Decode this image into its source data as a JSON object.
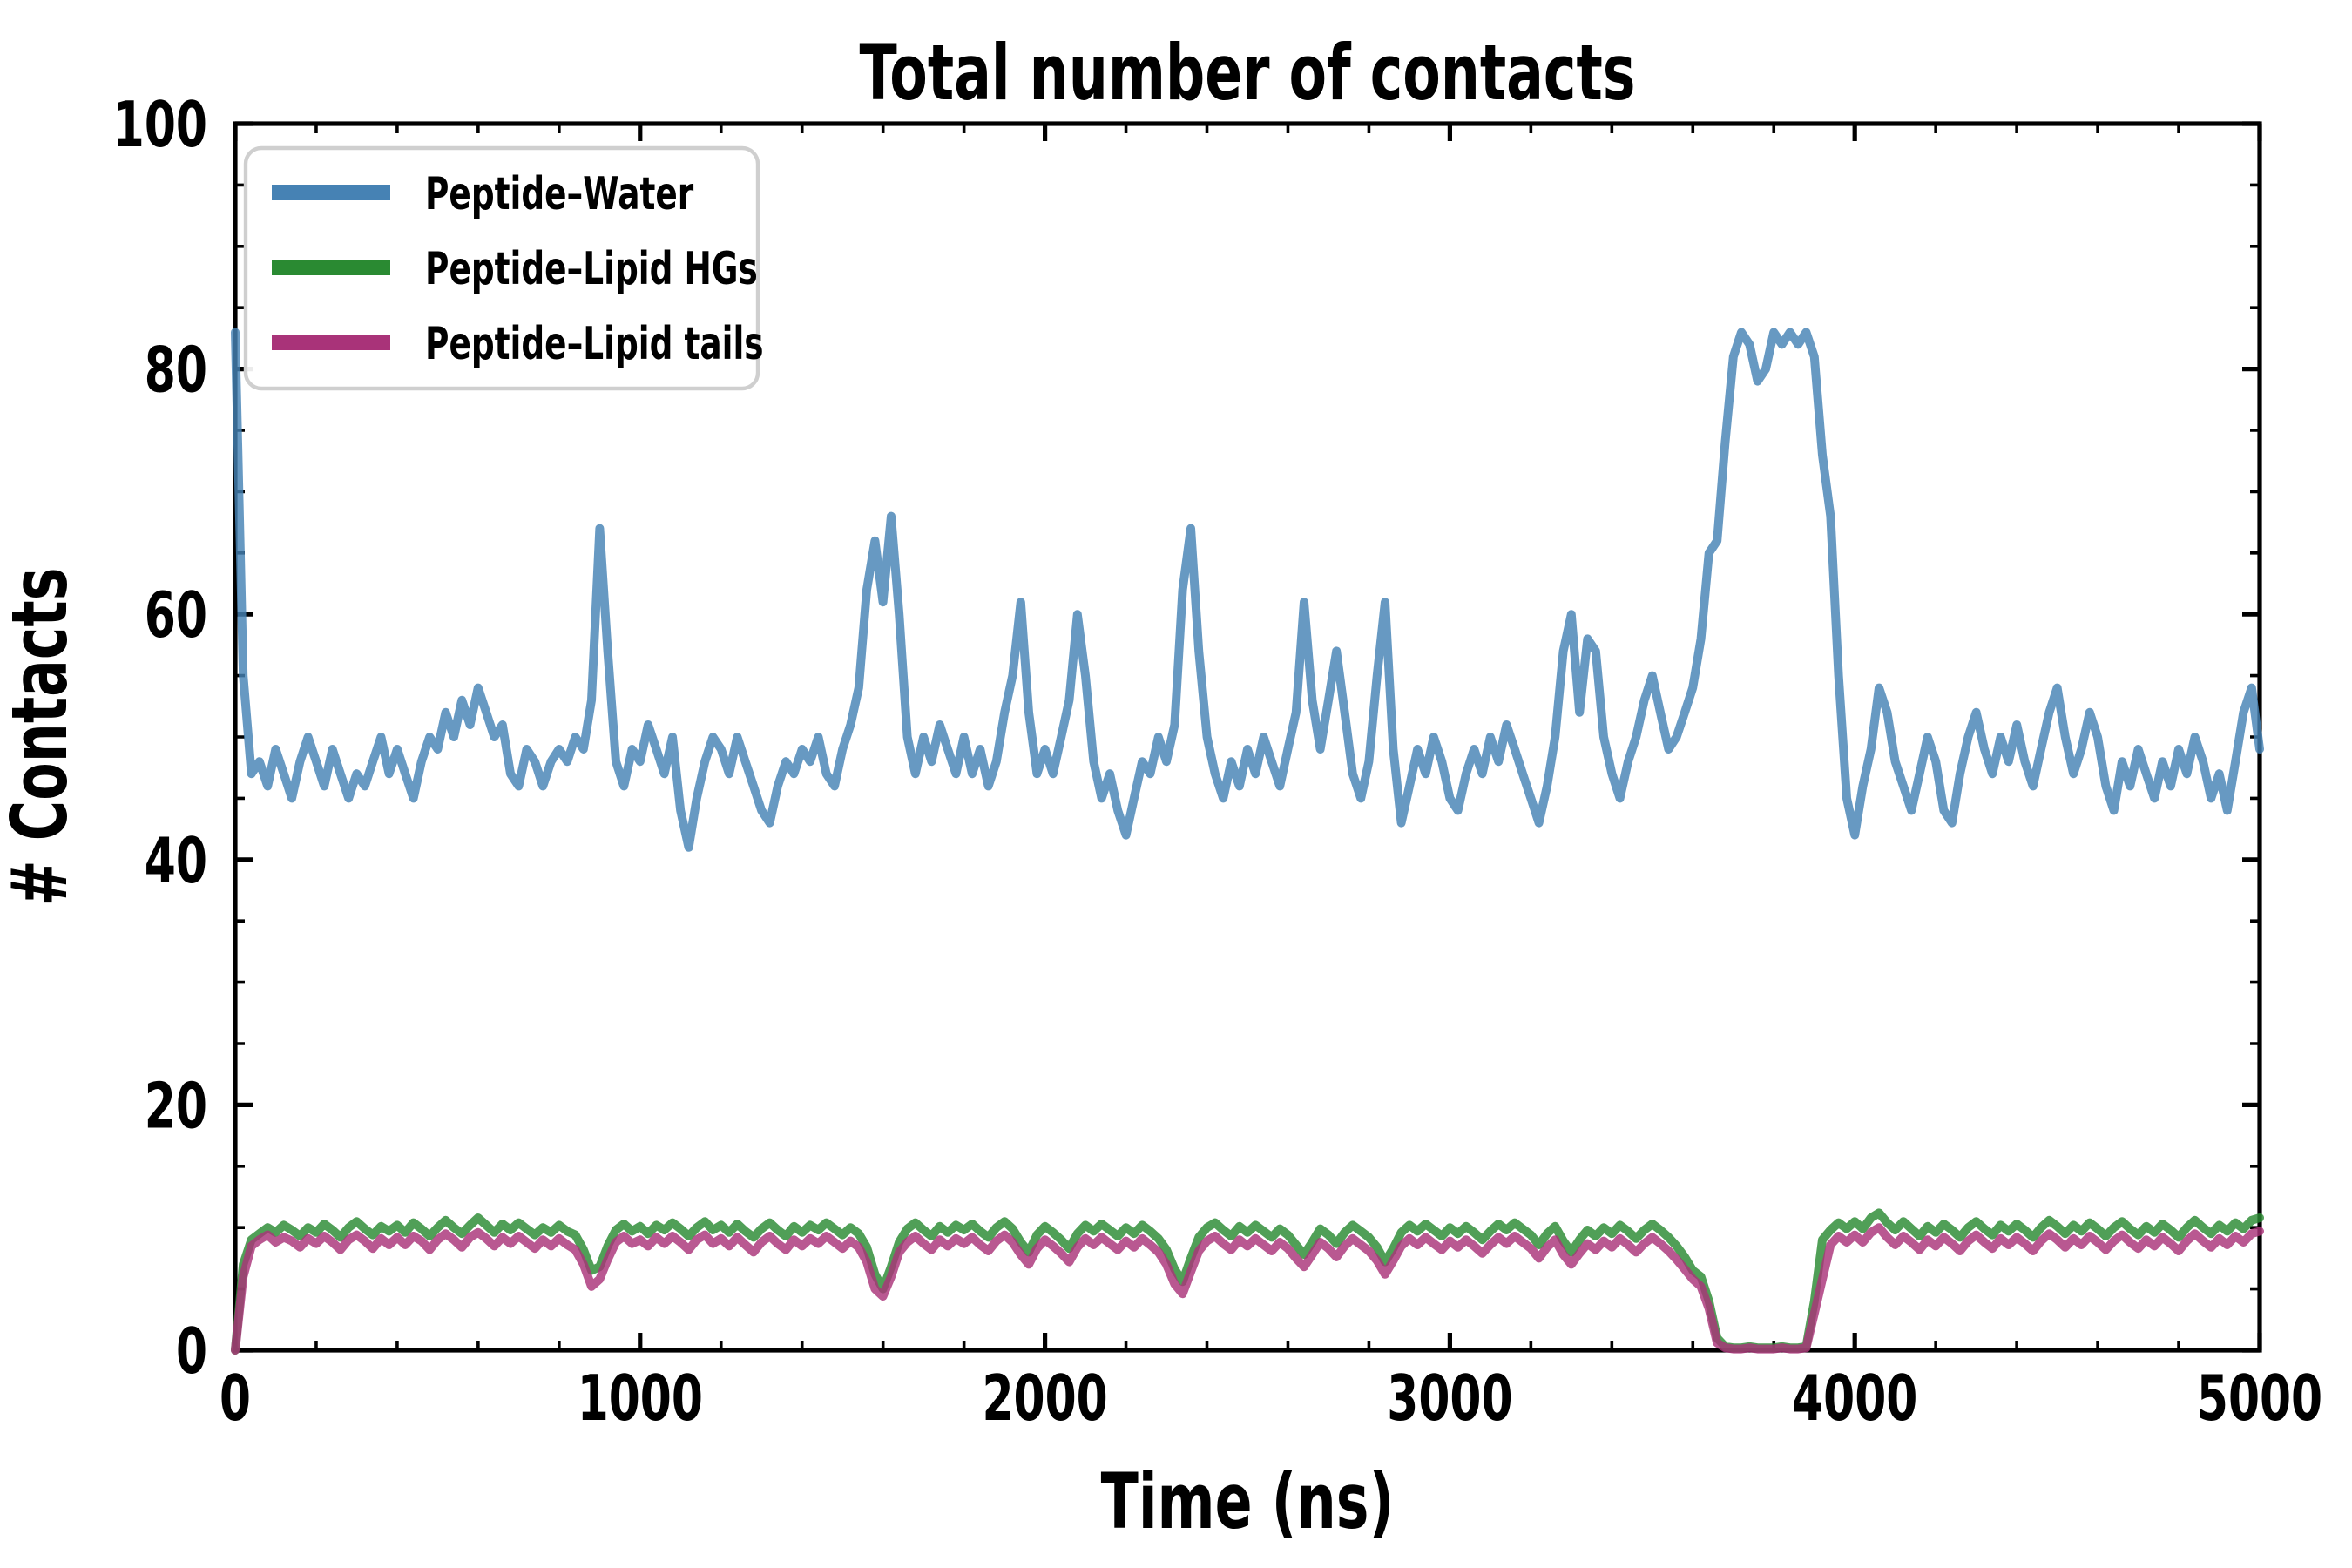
{
  "title": "Total number of contacts",
  "xlabel": "Time (ns)",
  "ylabel": "# Contacts",
  "legend": {
    "position": "upper left",
    "items": [
      {
        "label": "Peptide–Water",
        "color": "#4682b4"
      },
      {
        "label": "Peptide–Lipid HGs",
        "color": "#2a8a32"
      },
      {
        "label": "Peptide–Lipid tails",
        "color": "#a93379"
      }
    ]
  },
  "colors": {
    "peptide_water": "#4682b4",
    "peptide_lipid_hgs": "#2a8a32",
    "peptide_lipid_tails": "#a93379",
    "axis": "#000000",
    "legend_border": "#cfcfcf",
    "background": "#ffffff"
  },
  "axes": {
    "xlim": [
      0,
      5000
    ],
    "ylim": [
      0,
      100
    ],
    "x_major_ticks": [
      0,
      1000,
      2000,
      3000,
      4000,
      5000
    ],
    "y_major_ticks": [
      0,
      20,
      40,
      60,
      80,
      100
    ],
    "x_minor_step": 200,
    "y_minor_step": 5,
    "tick_direction": "in",
    "grid": false
  },
  "chart_data": {
    "type": "line",
    "title": "Total number of contacts",
    "xlabel": "Time (ns)",
    "ylabel": "# Contacts",
    "xlim": [
      0,
      5000
    ],
    "ylim": [
      0,
      100
    ],
    "legend_position": "upper left",
    "grid": false,
    "x_start": 0,
    "x_step": 20,
    "series": [
      {
        "name": "Peptide–Water",
        "color": "#4682b4",
        "values": [
          83,
          55,
          47,
          48,
          46,
          49,
          47,
          45,
          48,
          50,
          48,
          46,
          49,
          47,
          45,
          47,
          46,
          48,
          50,
          47,
          49,
          47,
          45,
          48,
          50,
          49,
          52,
          50,
          53,
          51,
          54,
          52,
          50,
          51,
          47,
          46,
          49,
          48,
          46,
          48,
          49,
          48,
          50,
          49,
          53,
          67,
          57,
          48,
          46,
          49,
          48,
          51,
          49,
          47,
          50,
          44,
          41,
          45,
          48,
          50,
          49,
          47,
          50,
          48,
          46,
          44,
          43,
          46,
          48,
          47,
          49,
          48,
          50,
          47,
          46,
          49,
          51,
          54,
          62,
          66,
          61,
          68,
          60,
          50,
          47,
          50,
          48,
          51,
          49,
          47,
          50,
          47,
          49,
          46,
          48,
          52,
          55,
          61,
          52,
          47,
          49,
          47,
          50,
          53,
          60,
          55,
          48,
          45,
          47,
          44,
          42,
          45,
          48,
          47,
          50,
          48,
          51,
          62,
          67,
          57,
          50,
          47,
          45,
          48,
          46,
          49,
          47,
          50,
          48,
          46,
          49,
          52,
          61,
          53,
          49,
          53,
          57,
          52,
          47,
          45,
          48,
          55,
          61,
          49,
          43,
          46,
          49,
          47,
          50,
          48,
          45,
          44,
          47,
          49,
          47,
          50,
          48,
          51,
          49,
          47,
          45,
          43,
          46,
          50,
          57,
          60,
          52,
          58,
          57,
          50,
          47,
          45,
          48,
          50,
          53,
          55,
          52,
          49,
          50,
          52,
          54,
          58,
          65,
          66,
          74,
          81,
          83,
          82,
          79,
          80,
          83,
          82,
          83,
          82,
          83,
          81,
          73,
          68,
          55,
          45,
          42,
          46,
          49,
          54,
          52,
          48,
          46,
          44,
          47,
          50,
          48,
          44,
          43,
          47,
          50,
          52,
          49,
          47,
          50,
          48,
          51,
          48,
          46,
          49,
          52,
          54,
          50,
          47,
          49,
          52,
          50,
          46,
          44,
          48,
          46,
          49,
          47,
          45,
          48,
          46,
          49,
          47,
          50,
          48,
          45,
          47,
          44,
          48,
          52,
          54,
          49
        ]
      },
      {
        "name": "Peptide–Lipid HGs",
        "color": "#2a8a32",
        "values": [
          0,
          7,
          9,
          9.5,
          10,
          9.6,
          10.2,
          9.8,
          9.3,
          10,
          9.6,
          10.3,
          9.8,
          9.2,
          10,
          10.5,
          9.9,
          9.4,
          10.1,
          9.7,
          10.2,
          9.6,
          10.4,
          9.9,
          9.3,
          10,
          10.6,
          10,
          9.5,
          10.2,
          10.8,
          10.2,
          9.6,
          10.3,
          9.8,
          10.4,
          9.9,
          9.4,
          10,
          9.6,
          10.2,
          9.7,
          9.4,
          8.2,
          6.5,
          6.8,
          8.5,
          9.8,
          10.3,
          9.7,
          10.1,
          9.5,
          10.2,
          9.8,
          10.4,
          9.9,
          9.3,
          10,
          10.5,
          9.8,
          10.2,
          9.6,
          10.3,
          9.7,
          9.2,
          9.9,
          10.4,
          9.8,
          9.3,
          10.1,
          9.6,
          10.2,
          9.8,
          10.4,
          9.9,
          9.4,
          10,
          9.5,
          8.4,
          6.2,
          5,
          6.8,
          8.8,
          9.9,
          10.4,
          9.8,
          9.3,
          10.1,
          9.6,
          10.2,
          9.8,
          10.3,
          9.7,
          9.2,
          10,
          10.5,
          9.9,
          8.8,
          8,
          9.4,
          10.1,
          9.6,
          9,
          8.3,
          9.5,
          10.2,
          9.7,
          10.3,
          9.8,
          9.3,
          10,
          9.5,
          10.2,
          9.7,
          9.1,
          8.2,
          6.6,
          5.6,
          7.5,
          9.2,
          10,
          10.4,
          9.8,
          9.3,
          10.1,
          9.6,
          10.2,
          9.7,
          9.2,
          9.9,
          9.4,
          8.6,
          7.8,
          8.8,
          9.9,
          9.4,
          8.7,
          9.6,
          10.2,
          9.7,
          9.2,
          8.4,
          7.2,
          8.3,
          9.6,
          10.2,
          9.7,
          10.3,
          9.8,
          9.3,
          10,
          9.5,
          10.1,
          9.6,
          9,
          9.7,
          10.3,
          9.8,
          10.4,
          9.9,
          9.4,
          8.6,
          9.5,
          10.1,
          8.9,
          8,
          9,
          9.8,
          9.3,
          10,
          9.5,
          10.2,
          9.7,
          9.1,
          9.8,
          10.3,
          9.8,
          9.2,
          8.5,
          7.6,
          6.5,
          6,
          4,
          1,
          0.3,
          0.2,
          0.2,
          0.3,
          0.2,
          0.2,
          0.2,
          0.3,
          0.2,
          0.2,
          0.3,
          4,
          9,
          9.8,
          10.4,
          9.9,
          10.5,
          9.9,
          10.8,
          11.2,
          10.4,
          9.8,
          10.5,
          9.9,
          9.3,
          10.1,
          9.6,
          10.3,
          9.8,
          9.2,
          10,
          10.5,
          9.9,
          9.4,
          10.2,
          9.7,
          10.3,
          9.8,
          9.2,
          10,
          10.6,
          10.1,
          9.5,
          10.2,
          9.7,
          10.4,
          9.9,
          9.3,
          10,
          10.5,
          9.9,
          9.4,
          10.1,
          9.6,
          10.3,
          9.8,
          9.2,
          10,
          10.6,
          10,
          9.5,
          10.2,
          9.7,
          10.4,
          9.9,
          10.6,
          10.8
        ]
      },
      {
        "name": "Peptide–Lipid tails",
        "color": "#a93379",
        "values": [
          0,
          6,
          8.5,
          9,
          9.4,
          8.8,
          9.2,
          8.9,
          8.4,
          9.1,
          8.7,
          9.3,
          8.8,
          8.2,
          9,
          9.4,
          8.9,
          8.3,
          9.1,
          8.6,
          9.2,
          8.6,
          9.3,
          8.9,
          8.2,
          9,
          9.5,
          9,
          8.4,
          9.2,
          9.6,
          9.1,
          8.5,
          9.2,
          8.7,
          9.3,
          8.8,
          8.3,
          9,
          8.5,
          9.1,
          8.6,
          8.2,
          7,
          5.2,
          5.8,
          7.4,
          8.8,
          9.3,
          8.7,
          9,
          8.5,
          9.2,
          8.7,
          9.3,
          8.8,
          8.2,
          9,
          9.4,
          8.7,
          9.1,
          8.5,
          9.2,
          8.6,
          8,
          8.8,
          9.3,
          8.7,
          8.2,
          9,
          8.5,
          9.1,
          8.7,
          9.3,
          8.8,
          8.3,
          8.9,
          8.4,
          7.2,
          5,
          4.4,
          6,
          8,
          8.8,
          9.3,
          8.7,
          8.2,
          9,
          8.5,
          9.1,
          8.7,
          9.2,
          8.6,
          8.1,
          8.9,
          9.4,
          8.8,
          7.8,
          7,
          8.3,
          9,
          8.5,
          7.9,
          7.2,
          8.4,
          9.1,
          8.6,
          9.2,
          8.7,
          8.2,
          8.9,
          8.4,
          9.1,
          8.6,
          8,
          7,
          5.4,
          4.6,
          6.4,
          8.1,
          8.9,
          9.3,
          8.7,
          8.2,
          9,
          8.5,
          9.1,
          8.6,
          8.1,
          8.8,
          8.3,
          7.5,
          6.8,
          7.8,
          8.8,
          8.3,
          7.6,
          8.5,
          9.1,
          8.6,
          8.1,
          7.3,
          6.2,
          7.3,
          8.5,
          9.1,
          8.6,
          9.2,
          8.7,
          8.2,
          8.9,
          8.4,
          9,
          8.5,
          7.9,
          8.6,
          9.2,
          8.7,
          9.3,
          8.8,
          8.3,
          7.5,
          8.4,
          9,
          7.8,
          7,
          7.9,
          8.7,
          8.2,
          8.9,
          8.4,
          9.1,
          8.6,
          8,
          8.7,
          9.2,
          8.7,
          8.1,
          7.4,
          6.6,
          5.8,
          5.2,
          3.4,
          0.6,
          0.2,
          0.1,
          0.1,
          0.2,
          0.1,
          0.1,
          0.1,
          0.2,
          0.1,
          0.1,
          0.2,
          3,
          5.8,
          8.6,
          9.3,
          8.8,
          9.4,
          8.8,
          9.6,
          10,
          9.2,
          8.6,
          9.3,
          8.8,
          8.2,
          9,
          8.5,
          9.2,
          8.7,
          8.1,
          8.9,
          9.4,
          8.8,
          8.3,
          9.1,
          8.6,
          9.2,
          8.7,
          8.1,
          8.9,
          9.5,
          9,
          8.4,
          9.1,
          8.6,
          9.3,
          8.8,
          8.2,
          8.9,
          9.4,
          8.8,
          8.3,
          9,
          8.5,
          9.2,
          8.7,
          8.1,
          8.9,
          9.5,
          8.9,
          8.4,
          9.1,
          8.6,
          9.3,
          8.8,
          9.5,
          9.7
        ]
      }
    ]
  }
}
